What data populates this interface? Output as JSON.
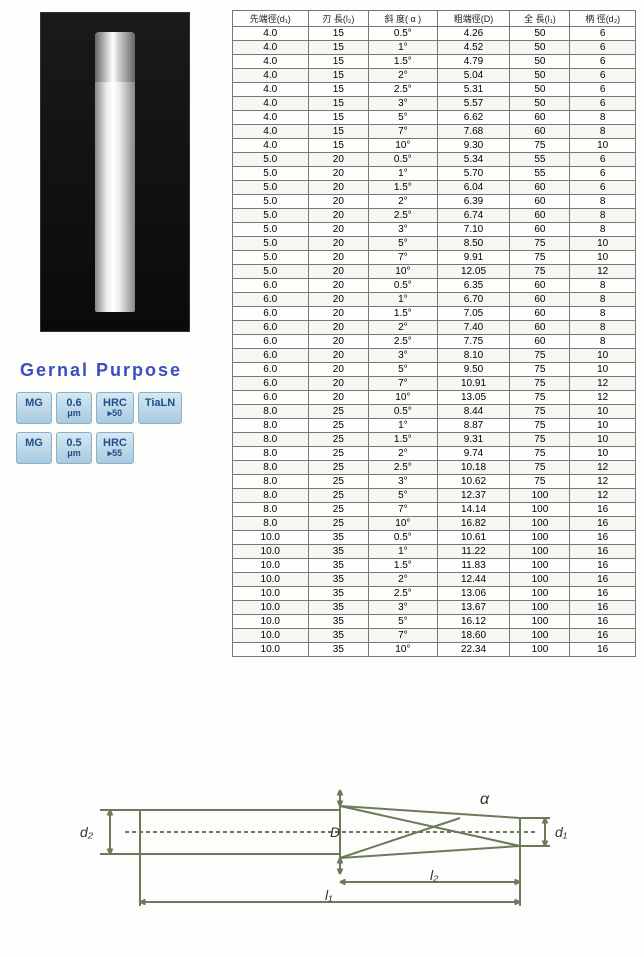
{
  "title": "Gernal Purpose",
  "badges": [
    {
      "main": "MG",
      "sub": ""
    },
    {
      "main": "0.6",
      "sub": "μm"
    },
    {
      "main": "HRC",
      "sub": "▸50"
    },
    {
      "main": "TiaLN",
      "sub": ""
    },
    {
      "main": "MG",
      "sub": ""
    },
    {
      "main": "0.5",
      "sub": "μm"
    },
    {
      "main": "HRC",
      "sub": "▸55"
    }
  ],
  "table": {
    "headers": [
      "先端徑(d₁)",
      "刃 長(l₂)",
      "斜 度( α )",
      "粗端徑(D)",
      "全 長(l₁)",
      "柄 徑(d₂)"
    ],
    "rows": [
      [
        "4.0",
        "15",
        "0.5°",
        "4.26",
        "50",
        "6"
      ],
      [
        "4.0",
        "15",
        "1°",
        "4.52",
        "50",
        "6"
      ],
      [
        "4.0",
        "15",
        "1.5°",
        "4.79",
        "50",
        "6"
      ],
      [
        "4.0",
        "15",
        "2°",
        "5.04",
        "50",
        "6"
      ],
      [
        "4.0",
        "15",
        "2.5°",
        "5.31",
        "50",
        "6"
      ],
      [
        "4.0",
        "15",
        "3°",
        "5.57",
        "50",
        "6"
      ],
      [
        "4.0",
        "15",
        "5°",
        "6.62",
        "60",
        "8"
      ],
      [
        "4.0",
        "15",
        "7°",
        "7.68",
        "60",
        "8"
      ],
      [
        "4.0",
        "15",
        "10°",
        "9.30",
        "75",
        "10"
      ],
      [
        "5.0",
        "20",
        "0.5°",
        "5.34",
        "55",
        "6"
      ],
      [
        "5.0",
        "20",
        "1°",
        "5.70",
        "55",
        "6"
      ],
      [
        "5.0",
        "20",
        "1.5°",
        "6.04",
        "60",
        "6"
      ],
      [
        "5.0",
        "20",
        "2°",
        "6.39",
        "60",
        "8"
      ],
      [
        "5.0",
        "20",
        "2.5°",
        "6.74",
        "60",
        "8"
      ],
      [
        "5.0",
        "20",
        "3°",
        "7.10",
        "60",
        "8"
      ],
      [
        "5.0",
        "20",
        "5°",
        "8.50",
        "75",
        "10"
      ],
      [
        "5.0",
        "20",
        "7°",
        "9.91",
        "75",
        "10"
      ],
      [
        "5.0",
        "20",
        "10°",
        "12.05",
        "75",
        "12"
      ],
      [
        "6.0",
        "20",
        "0.5°",
        "6.35",
        "60",
        "8"
      ],
      [
        "6.0",
        "20",
        "1°",
        "6.70",
        "60",
        "8"
      ],
      [
        "6.0",
        "20",
        "1.5°",
        "7.05",
        "60",
        "8"
      ],
      [
        "6.0",
        "20",
        "2°",
        "7.40",
        "60",
        "8"
      ],
      [
        "6.0",
        "20",
        "2.5°",
        "7.75",
        "60",
        "8"
      ],
      [
        "6.0",
        "20",
        "3°",
        "8.10",
        "75",
        "10"
      ],
      [
        "6.0",
        "20",
        "5°",
        "9.50",
        "75",
        "10"
      ],
      [
        "6.0",
        "20",
        "7°",
        "10.91",
        "75",
        "12"
      ],
      [
        "6.0",
        "20",
        "10°",
        "13.05",
        "75",
        "12"
      ],
      [
        "8.0",
        "25",
        "0.5°",
        "8.44",
        "75",
        "10"
      ],
      [
        "8.0",
        "25",
        "1°",
        "8.87",
        "75",
        "10"
      ],
      [
        "8.0",
        "25",
        "1.5°",
        "9.31",
        "75",
        "10"
      ],
      [
        "8.0",
        "25",
        "2°",
        "9.74",
        "75",
        "10"
      ],
      [
        "8.0",
        "25",
        "2.5°",
        "10.18",
        "75",
        "12"
      ],
      [
        "8.0",
        "25",
        "3°",
        "10.62",
        "75",
        "12"
      ],
      [
        "8.0",
        "25",
        "5°",
        "12.37",
        "100",
        "12"
      ],
      [
        "8.0",
        "25",
        "7°",
        "14.14",
        "100",
        "16"
      ],
      [
        "8.0",
        "25",
        "10°",
        "16.82",
        "100",
        "16"
      ],
      [
        "10.0",
        "35",
        "0.5°",
        "10.61",
        "100",
        "16"
      ],
      [
        "10.0",
        "35",
        "1°",
        "11.22",
        "100",
        "16"
      ],
      [
        "10.0",
        "35",
        "1.5°",
        "11.83",
        "100",
        "16"
      ],
      [
        "10.0",
        "35",
        "2°",
        "12.44",
        "100",
        "16"
      ],
      [
        "10.0",
        "35",
        "2.5°",
        "13.06",
        "100",
        "16"
      ],
      [
        "10.0",
        "35",
        "3°",
        "13.67",
        "100",
        "16"
      ],
      [
        "10.0",
        "35",
        "5°",
        "16.12",
        "100",
        "16"
      ],
      [
        "10.0",
        "35",
        "7°",
        "18.60",
        "100",
        "16"
      ],
      [
        "10.0",
        "35",
        "10°",
        "22.34",
        "100",
        "16"
      ]
    ]
  },
  "diagram": {
    "labels": {
      "d2": "d₂",
      "D": "D",
      "d1": "d₁",
      "alpha": "α",
      "l1": "l₁",
      "l2": "l₂"
    },
    "stroke": "#6a7a5a",
    "stroke_width": 2
  }
}
